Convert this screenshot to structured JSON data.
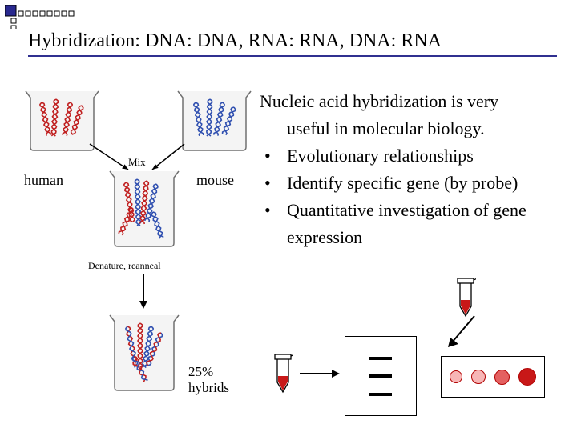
{
  "title": "Hybridization:  DNA: DNA, RNA: RNA, DNA: RNA",
  "intro1": "Nucleic acid hybridization is very",
  "intro2": "useful in molecular biology.",
  "bullets": [
    "Evolutionary relationships",
    "Identify specific gene (by probe)",
    "Quantitative investigation of gene expression"
  ],
  "labels": {
    "human": "human",
    "mouse": "mouse",
    "mix": "Mix",
    "denature": "Denature, reanneal",
    "hybrids_l1": "25%",
    "hybrids_l2": "hybrids"
  },
  "colors": {
    "nav_square": "#29298f",
    "nav_border": "#000000",
    "underline": "#303090",
    "helix_red": "#c02020",
    "helix_blue": "#3050b0",
    "tube_red": "#c81818",
    "spot_light": "#f7b6b6",
    "spot_mid": "#e46060",
    "spot_dark": "#c81818",
    "spot_border": "#b00000",
    "beaker_stroke": "#707070",
    "beaker_fill": "#f4f4f4"
  },
  "gel": {
    "band_positions": [
      25,
      47,
      70
    ]
  },
  "spots": [
    {
      "size": 16,
      "fill_key": "spot_light"
    },
    {
      "size": 18,
      "fill_key": "spot_light"
    },
    {
      "size": 19,
      "fill_key": "spot_mid"
    },
    {
      "size": 22,
      "fill_key": "spot_dark"
    }
  ],
  "deco": {
    "big": 14,
    "small": 6,
    "gap": 3
  }
}
